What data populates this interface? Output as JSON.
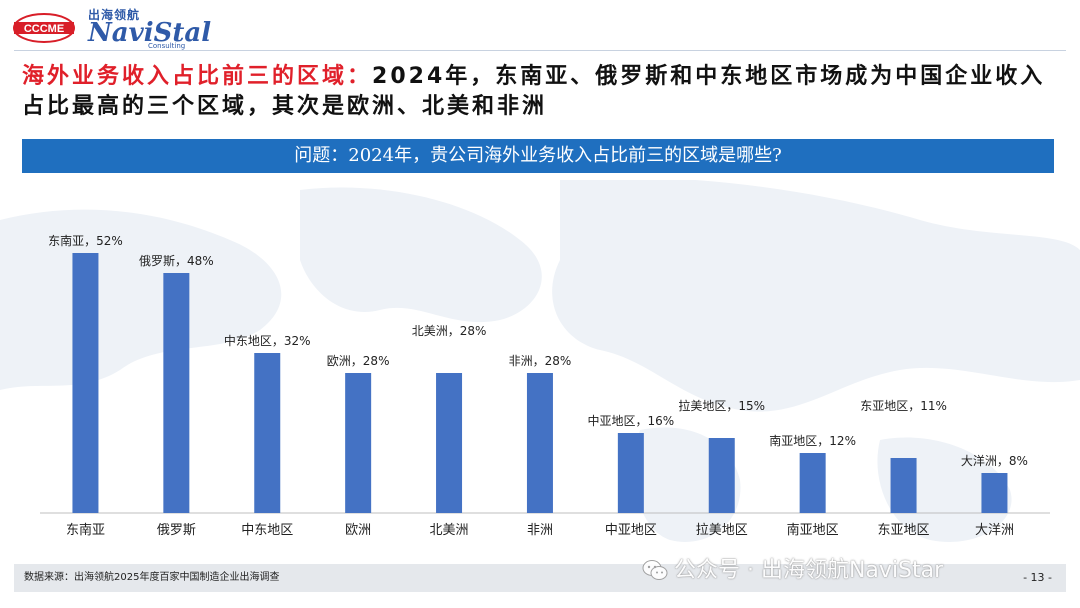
{
  "header": {
    "logo_left": "CCCME",
    "logo_cn": "出海领航",
    "logo_en": "NaviStal",
    "logo_sub": "Consulting"
  },
  "headline": {
    "highlight": "海外业务收入占比前三的区域：",
    "rest": "2024年，东南亚、俄罗斯和中东地区市场成为中国企业收入占比最高的三个区域，其次是欧洲、北美和非洲"
  },
  "banner": {
    "question": "问题：2024年，贵公司海外业务收入占比前三的区域是哪些?"
  },
  "chart_data": {
    "type": "bar",
    "categories": [
      "东南亚",
      "俄罗斯",
      "中东地区",
      "欧洲",
      "北美洲",
      "非洲",
      "中亚地区",
      "拉美地区",
      "南亚地区",
      "东亚地区",
      "大洋洲"
    ],
    "values": [
      52,
      48,
      32,
      28,
      28,
      28,
      16,
      15,
      12,
      11,
      8
    ],
    "data_labels": [
      "东南亚，52%",
      "俄罗斯，48%",
      "中东地区，32%",
      "欧洲，28%",
      "北美洲，28%",
      "非洲，28%",
      "中亚地区，16%",
      "拉美地区，15%",
      "南亚地区，12%",
      "东亚地区，11%",
      "大洋洲，8%"
    ],
    "ylim": [
      0,
      55
    ],
    "bar_color": "#4472c4",
    "grid": false,
    "title": "",
    "xlabel": "",
    "ylabel": ""
  },
  "footer": {
    "source": "数据来源：出海领航2025年度百家中国制造企业出海调查",
    "page": "- 13 -"
  },
  "watermark": {
    "text": "公众号 · 出海领航NaviStar"
  },
  "colors": {
    "accent_red": "#e0202a",
    "banner_blue": "#1f6fbf",
    "bar_blue": "#4472c4"
  }
}
